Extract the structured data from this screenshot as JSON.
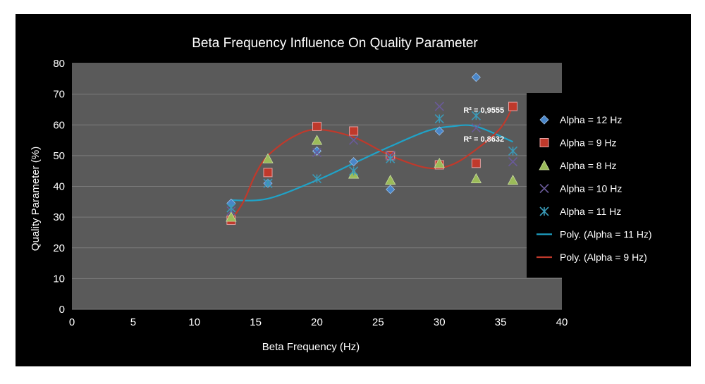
{
  "chart_data": {
    "type": "scatter",
    "title": "Beta Frequency Influence On Quality Parameter",
    "xlabel": "Beta Frequency (Hz)",
    "ylabel": "Quality Parameter (%)",
    "xlim": [
      0,
      40
    ],
    "ylim": [
      0,
      80
    ],
    "x_ticks": [
      "0",
      "5",
      "10",
      "15",
      "20",
      "25",
      "30",
      "35",
      "40"
    ],
    "y_ticks": [
      "0",
      "10",
      "20",
      "30",
      "40",
      "50",
      "60",
      "70",
      "80"
    ],
    "grid": true,
    "legend_position": "right",
    "background": "#5a5a5a",
    "series": [
      {
        "name": "Alpha = 12 Hz",
        "marker": "diamond",
        "color": "#4a86c8",
        "x": [
          13,
          16,
          20,
          23,
          26,
          30,
          33
        ],
        "y": [
          34.5,
          41,
          51.5,
          48,
          39,
          58,
          75.5
        ]
      },
      {
        "name": "Alpha = 9 Hz",
        "marker": "square",
        "color": "#c0392b",
        "x": [
          13,
          16,
          20,
          23,
          26,
          30,
          33,
          36
        ],
        "y": [
          29,
          44.5,
          59.5,
          58,
          50,
          47,
          47.5,
          66
        ]
      },
      {
        "name": "Alpha = 8 Hz",
        "marker": "triangle",
        "color": "#9bbb59",
        "x": [
          13,
          16,
          20,
          23,
          26,
          30,
          33,
          36
        ],
        "y": [
          30,
          49,
          55,
          44,
          42,
          47.5,
          42.5,
          42
        ]
      },
      {
        "name": "Alpha = 10 Hz",
        "marker": "x",
        "color": "#6a5a9a",
        "x": [
          13,
          16,
          20,
          23,
          26,
          30,
          33,
          36
        ],
        "y": [
          32,
          41,
          51,
          55,
          50,
          66,
          59,
          48
        ]
      },
      {
        "name": "Alpha = 11 Hz",
        "marker": "star",
        "color": "#3a9ab8",
        "x": [
          13,
          16,
          20,
          23,
          26,
          30,
          33,
          36
        ],
        "y": [
          33,
          41,
          42.5,
          45,
          49,
          62,
          63,
          51.5
        ]
      }
    ],
    "trendlines": [
      {
        "name": "Poly. (Alpha = 11 Hz)",
        "color": "#1fa3c8",
        "x": [
          13,
          16,
          20,
          23,
          26,
          29,
          31,
          33,
          36
        ],
        "y": [
          35.5,
          36,
          42,
          47.5,
          53,
          58,
          59.5,
          59.5,
          54.5
        ]
      },
      {
        "name": "Poly. (Alpha = 9 Hz)",
        "color": "#c0392b",
        "x": [
          13,
          14,
          15,
          16,
          18,
          20,
          23,
          26,
          29,
          31,
          33,
          35,
          36
        ],
        "y": [
          29,
          35,
          44,
          50,
          56,
          58.5,
          56,
          50,
          46,
          47,
          52,
          59,
          66
        ]
      }
    ],
    "annotations": [
      {
        "text": "R² = 0,9555",
        "x": 31.5,
        "y": 64
      },
      {
        "text": "R² = 0,8632",
        "x": 31.5,
        "y": 54.5
      }
    ]
  }
}
